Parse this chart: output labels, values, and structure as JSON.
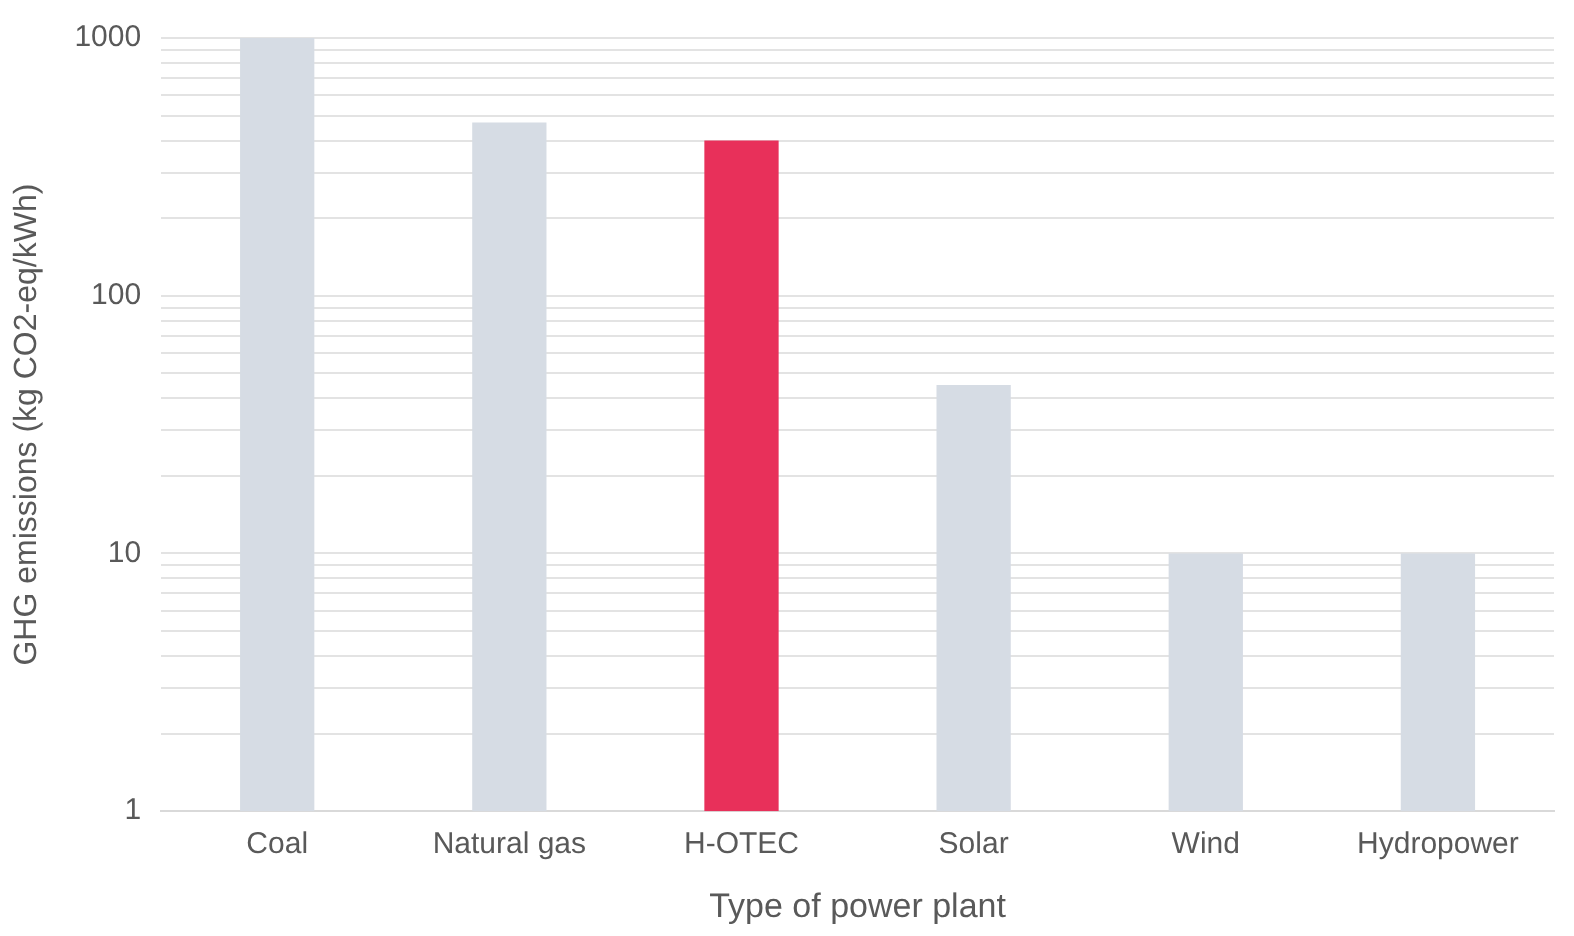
{
  "chart_data": {
    "type": "bar",
    "xlabel": "Type of power plant",
    "ylabel": "GHG emissions (kg CO2-eq/kWh)",
    "categories": [
      "Coal",
      "Natural gas",
      "H-OTEC",
      "Solar",
      "Wind",
      "Hydropower"
    ],
    "values": [
      1000,
      470,
      400,
      45,
      10,
      10
    ],
    "colors": [
      "#d6dce4",
      "#d6dce4",
      "#e8305a",
      "#d6dce4",
      "#d6dce4",
      "#d6dce4"
    ],
    "log": "y",
    "ylim": [
      1,
      1000
    ],
    "yticks": [
      1,
      {
        "value": 2,
        "label": null
      },
      {
        "value": 3,
        "label": null
      },
      {
        "value": 4,
        "label": null
      },
      {
        "value": 5,
        "label": null
      },
      {
        "value": 6,
        "label": null
      },
      {
        "value": 7,
        "label": null
      },
      {
        "value": 8,
        "label": null
      },
      {
        "value": 9,
        "label": null
      },
      10,
      {
        "value": 20,
        "label": null
      },
      {
        "value": 30,
        "label": null
      },
      {
        "value": 40,
        "label": null
      },
      {
        "value": 50,
        "label": null
      },
      {
        "value": 60,
        "label": null
      },
      {
        "value": 70,
        "label": null
      },
      {
        "value": 80,
        "label": null
      },
      {
        "value": 90,
        "label": null
      },
      100,
      {
        "value": 200,
        "label": null
      },
      {
        "value": 300,
        "label": null
      },
      {
        "value": 400,
        "label": null
      },
      {
        "value": 500,
        "label": null
      },
      {
        "value": 600,
        "label": null
      },
      {
        "value": 700,
        "label": null
      },
      {
        "value": 800,
        "label": null
      },
      {
        "value": 900,
        "label": null
      },
      1000
    ],
    "grid": "y"
  }
}
